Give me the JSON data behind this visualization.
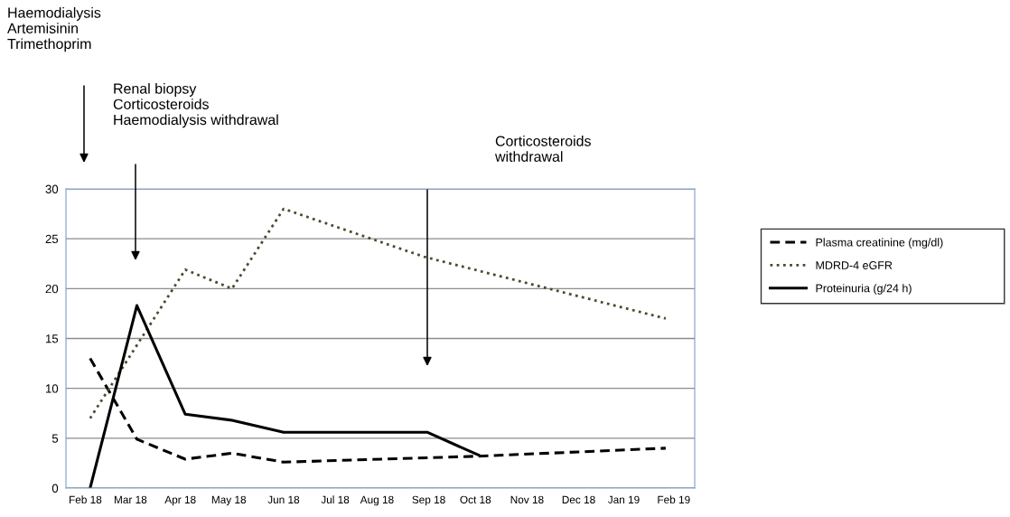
{
  "chart_data": {
    "type": "line",
    "xlim": [
      "2018-01-20",
      "2019-02-14"
    ],
    "xticks": [
      {
        "value": "2018-02-01",
        "label": "Feb 18"
      },
      {
        "value": "2018-03-01",
        "label": "Mar 18"
      },
      {
        "value": "2018-04-01",
        "label": "Apr 18"
      },
      {
        "value": "2018-05-01",
        "label": "May 18"
      },
      {
        "value": "2018-06-04",
        "label": "Jun 18"
      },
      {
        "value": "2018-07-06",
        "label": "Jul 18"
      },
      {
        "value": "2018-08-01",
        "label": "Aug 18"
      },
      {
        "value": "2018-09-02",
        "label": "Sep 18"
      },
      {
        "value": "2018-10-01",
        "label": "Oct 18"
      },
      {
        "value": "2018-11-02",
        "label": "Nov 18"
      },
      {
        "value": "2018-12-04",
        "label": "Dec 18"
      },
      {
        "value": "2019-01-01",
        "label": "Jan 19"
      },
      {
        "value": "2019-02-01",
        "label": "Feb 19"
      }
    ],
    "ylim": [
      0,
      30
    ],
    "yticks": [
      0,
      5,
      10,
      15,
      20,
      25,
      30
    ],
    "grid": "y",
    "legend": "right",
    "marker": "none",
    "series": [
      {
        "name": "Plasma creatinine (mg/dl)",
        "color": "#000000",
        "line_style": "dashed",
        "x": [
          "2018-02-04",
          "2018-03-05",
          "2018-04-04",
          "2018-05-03",
          "2018-06-04",
          "2018-10-03",
          "2019-01-27"
        ],
        "values": [
          13.0,
          4.9,
          2.9,
          3.5,
          2.6,
          3.2,
          4.0
        ]
      },
      {
        "name": "MDRD-4 eGFR",
        "color": "#4d4a2e",
        "line_style": "dotted",
        "x": [
          "2018-02-04",
          "2018-04-04",
          "2018-05-03",
          "2018-06-04",
          "2018-08-30",
          "2019-01-27"
        ],
        "values": [
          7.0,
          21.9,
          20.0,
          28.0,
          23.2,
          17.0
        ]
      },
      {
        "name": "Proteinuria (g/24 h)",
        "color": "#000000",
        "line_style": "solid",
        "x": [
          "2018-02-04",
          "2018-03-05",
          "2018-04-04",
          "2018-05-03",
          "2018-06-04",
          "2018-09-01",
          "2018-10-03"
        ],
        "values": [
          0,
          18.3,
          7.4,
          6.8,
          5.6,
          5.6,
          3.3
        ]
      }
    ],
    "annotations": [
      "Haemodialysis\nArtemisinin\nTrimethoprim",
      "Renal biopsy\nCorticosteroids\nHaemodialysis withdrawal",
      "Corticosteroids\nwithdrawal"
    ]
  }
}
